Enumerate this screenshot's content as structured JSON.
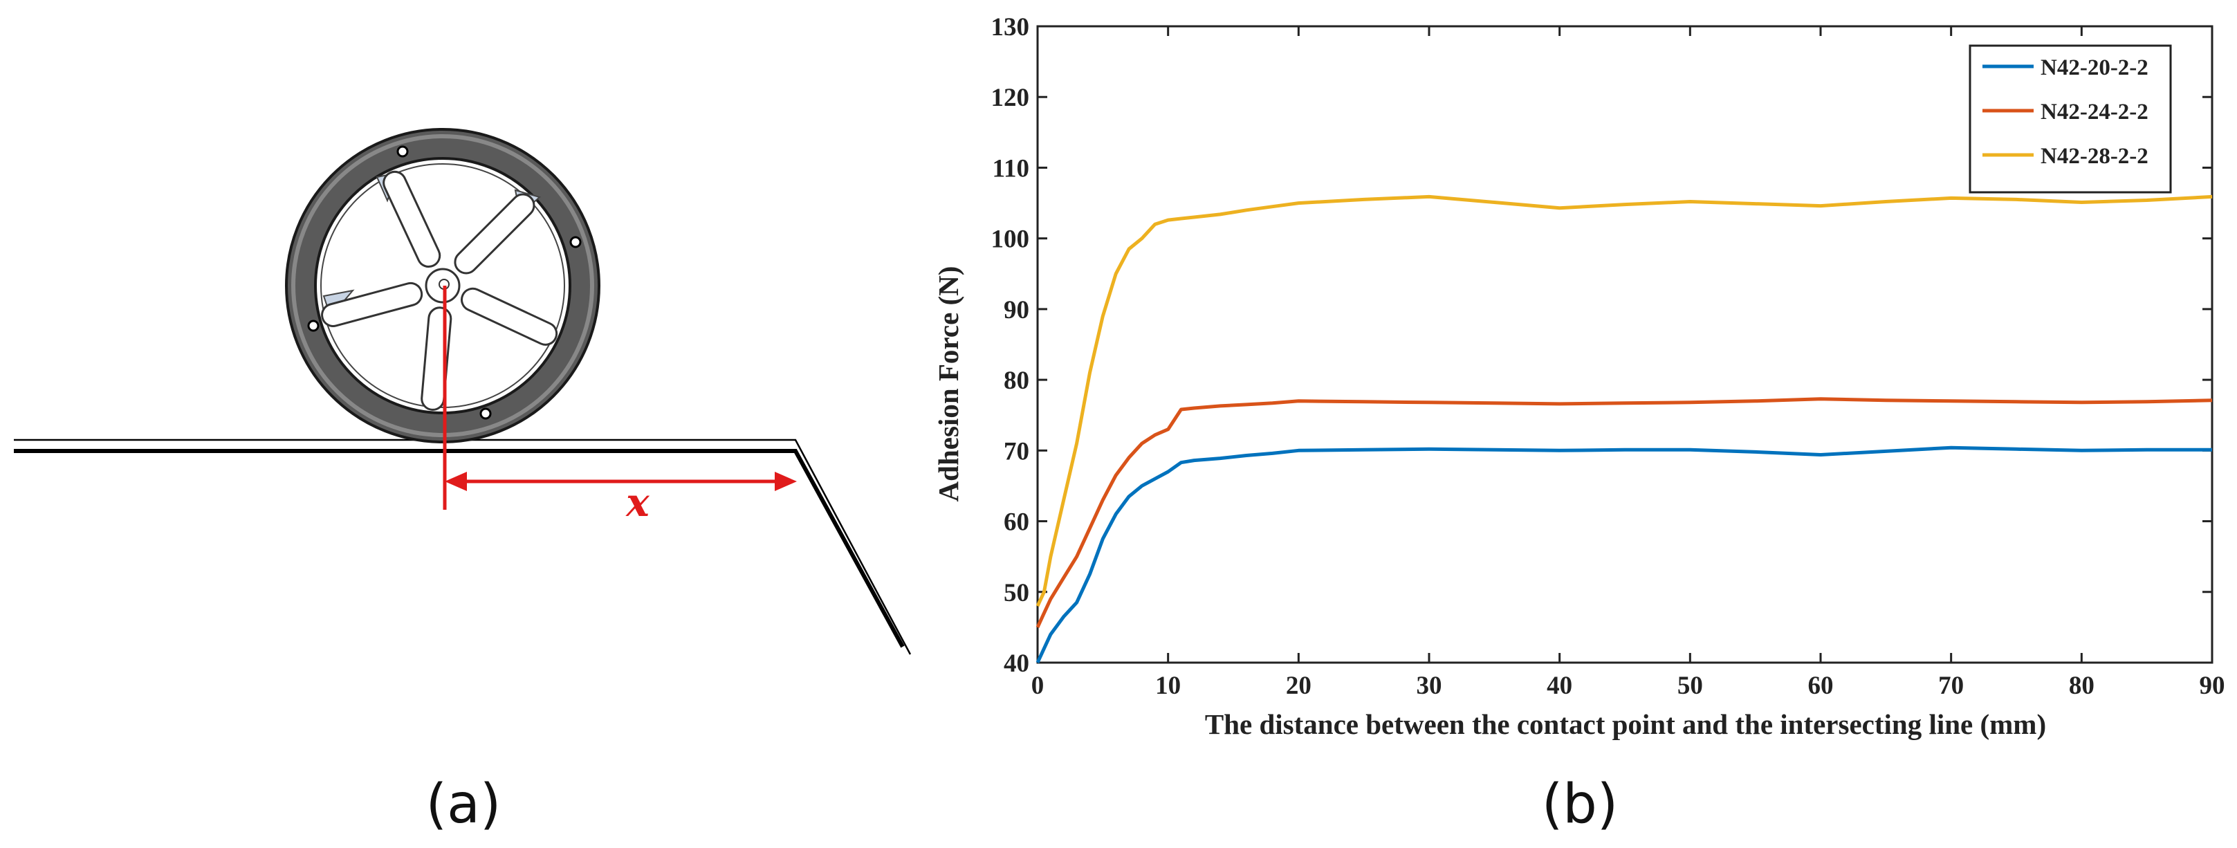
{
  "panel_a": {
    "label": "(a)",
    "dimension_label": "x",
    "arrow_color": "#e01b1b"
  },
  "panel_b": {
    "label": "(b)"
  },
  "chart_data": {
    "type": "line",
    "title": "",
    "xlabel": "The distance between the contact point and the intersecting line (mm)",
    "ylabel": "Adhesion Force (N)",
    "xlim": [
      0,
      90
    ],
    "ylim": [
      40,
      130
    ],
    "xticks": [
      0,
      10,
      20,
      30,
      40,
      50,
      60,
      70,
      80,
      90
    ],
    "yticks": [
      40,
      50,
      60,
      70,
      80,
      90,
      100,
      110,
      120,
      130
    ],
    "grid": false,
    "legend_position": "top-right",
    "series": [
      {
        "name": "N42-20-2-2",
        "color": "#0072BD",
        "x": [
          0,
          0.5,
          1,
          2,
          3,
          4,
          5,
          6,
          7,
          8,
          9,
          10,
          11,
          12,
          14,
          16,
          18,
          20,
          25,
          30,
          35,
          40,
          45,
          50,
          55,
          60,
          65,
          70,
          75,
          80,
          85,
          90
        ],
        "y": [
          40,
          42,
          44,
          46.5,
          48.5,
          52.5,
          57.5,
          61,
          63.5,
          65,
          66,
          67,
          68.3,
          68.6,
          68.9,
          69.3,
          69.6,
          70,
          70.1,
          70.2,
          70.1,
          70,
          70.1,
          70.1,
          69.8,
          69.4,
          69.9,
          70.4,
          70.2,
          70,
          70.1,
          70.1
        ]
      },
      {
        "name": "N42-24-2-2",
        "color": "#D95319",
        "x": [
          0,
          0.5,
          1,
          2,
          3,
          4,
          5,
          6,
          7,
          8,
          9,
          10,
          11,
          12,
          14,
          16,
          18,
          20,
          25,
          30,
          35,
          40,
          45,
          50,
          55,
          60,
          65,
          70,
          75,
          80,
          85,
          90
        ],
        "y": [
          45,
          47,
          49,
          52,
          55,
          59,
          63,
          66.5,
          69,
          71,
          72.2,
          73,
          75.8,
          76,
          76.3,
          76.5,
          76.7,
          77,
          76.9,
          76.8,
          76.7,
          76.6,
          76.7,
          76.8,
          77,
          77.3,
          77.1,
          77,
          76.9,
          76.8,
          76.9,
          77.1
        ]
      },
      {
        "name": "N42-28-2-2",
        "color": "#EDB120",
        "x": [
          0,
          0.5,
          1,
          2,
          3,
          4,
          5,
          6,
          7,
          8,
          9,
          10,
          11,
          12,
          14,
          16,
          18,
          20,
          25,
          30,
          35,
          40,
          45,
          50,
          55,
          60,
          65,
          70,
          75,
          80,
          85,
          90
        ],
        "y": [
          48,
          50,
          55,
          63,
          71,
          81,
          89,
          95,
          98.5,
          100,
          102,
          102.6,
          102.8,
          103,
          103.4,
          104,
          104.5,
          105,
          105.5,
          105.9,
          105.1,
          104.3,
          104.8,
          105.2,
          104.9,
          104.6,
          105.2,
          105.7,
          105.5,
          105.1,
          105.4,
          105.9
        ]
      }
    ]
  }
}
